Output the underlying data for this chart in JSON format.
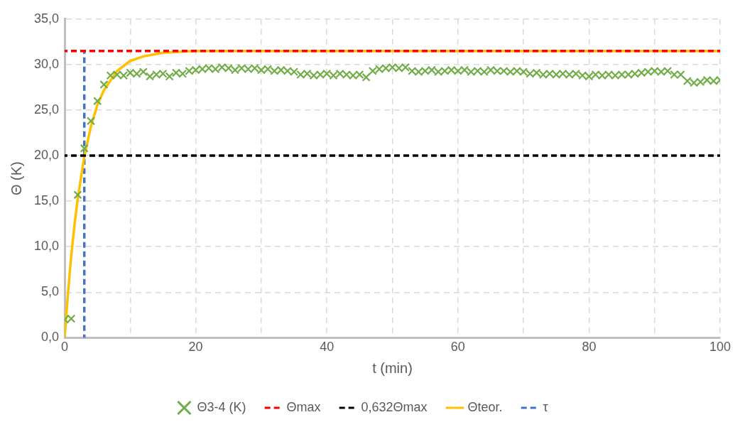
{
  "chart_data": {
    "type": "line",
    "xlabel": "t (min)",
    "ylabel": "Θ (K)",
    "legend": "bottom",
    "grid": true,
    "xlim": [
      0,
      100
    ],
    "xticks": [
      0,
      {
        "value": 10,
        "label": null
      },
      20,
      {
        "value": 30,
        "label": null
      },
      40,
      {
        "value": 50,
        "label": null
      },
      60,
      {
        "value": 70,
        "label": null
      },
      80,
      {
        "value": 90,
        "label": null
      },
      100
    ],
    "ylim": [
      0,
      35
    ],
    "yticks": [
      {
        "value": 0,
        "label": "0,0"
      },
      {
        "value": 5,
        "label": "5,0"
      },
      {
        "value": 10,
        "label": "10,0"
      },
      {
        "value": 15,
        "label": "15,0"
      },
      {
        "value": 20,
        "label": "20,0"
      },
      {
        "value": 25,
        "label": "25,0"
      },
      {
        "value": 30,
        "label": "30,0"
      },
      {
        "value": 35,
        "label": "35,0"
      }
    ],
    "series": [
      {
        "name": "Θ3-4 (K)",
        "type": "scatter",
        "marker": "cross",
        "color": "#70ad47",
        "x": [
          0,
          1,
          2,
          3,
          4,
          5,
          6,
          7,
          8,
          9,
          10,
          11,
          12,
          13,
          14,
          15,
          16,
          17,
          18,
          19,
          20,
          21,
          22,
          23,
          24,
          25,
          26,
          27,
          28,
          29,
          30,
          31,
          32,
          33,
          34,
          35,
          36,
          37,
          38,
          39,
          40,
          41,
          42,
          43,
          44,
          45,
          46,
          47,
          48,
          49,
          50,
          51,
          52,
          53,
          54,
          55,
          56,
          57,
          58,
          59,
          60,
          61,
          62,
          63,
          64,
          65,
          66,
          67,
          68,
          69,
          70,
          71,
          72,
          73,
          74,
          75,
          76,
          77,
          78,
          79,
          80,
          81,
          82,
          83,
          84,
          85,
          86,
          87,
          88,
          89,
          90,
          91,
          92,
          93,
          94,
          95,
          96,
          97,
          98,
          99,
          100
        ],
        "values": [
          2.0,
          2.1,
          15.7,
          20.8,
          23.8,
          26.0,
          27.8,
          28.8,
          28.9,
          28.8,
          29.1,
          29.0,
          29.2,
          28.7,
          28.9,
          29.0,
          28.7,
          29.1,
          29.0,
          29.3,
          29.4,
          29.5,
          29.6,
          29.5,
          29.7,
          29.6,
          29.4,
          29.6,
          29.5,
          29.6,
          29.4,
          29.5,
          29.3,
          29.4,
          29.3,
          29.2,
          28.9,
          29.0,
          28.8,
          28.9,
          29.0,
          28.8,
          29.0,
          28.9,
          28.8,
          28.9,
          28.6,
          29.3,
          29.5,
          29.6,
          29.7,
          29.6,
          29.7,
          29.3,
          29.2,
          29.3,
          29.4,
          29.2,
          29.3,
          29.4,
          29.3,
          29.4,
          29.2,
          29.3,
          29.2,
          29.4,
          29.3,
          29.3,
          29.2,
          29.3,
          29.2,
          29.0,
          29.1,
          28.9,
          29.0,
          28.9,
          29.0,
          28.9,
          29.0,
          28.8,
          28.7,
          28.9,
          28.8,
          28.9,
          28.8,
          28.9,
          28.9,
          29.0,
          29.1,
          29.2,
          29.3,
          29.2,
          29.3,
          28.9,
          28.9,
          28.2,
          28.0,
          28.1,
          28.3,
          28.2,
          28.3
        ]
      },
      {
        "name": "Θmax",
        "line_style": "dashed",
        "color": "#ff0000",
        "x": [
          0,
          100
        ],
        "values": [
          31.5,
          31.5
        ]
      },
      {
        "name": "0,632Θmax",
        "line_style": "dashed",
        "color": "#000000",
        "x": [
          0,
          100
        ],
        "values": [
          20,
          20
        ]
      },
      {
        "name": "Θteor.",
        "line_style": "solid",
        "color": "#ffc000",
        "x": [
          0,
          0.5,
          1,
          1.5,
          2,
          3,
          4,
          5,
          6,
          8,
          10,
          12,
          15,
          20,
          100
        ],
        "values": [
          0,
          4.8,
          9.0,
          12.4,
          15.3,
          19.9,
          23.2,
          25.6,
          27.2,
          29.3,
          30.4,
          30.9,
          31.3,
          31.5,
          31.5
        ]
      },
      {
        "name": "τ",
        "line_style": "dashed",
        "color": "#4472c4",
        "x": [
          3,
          3
        ],
        "values": [
          0,
          31.5
        ]
      }
    ]
  }
}
